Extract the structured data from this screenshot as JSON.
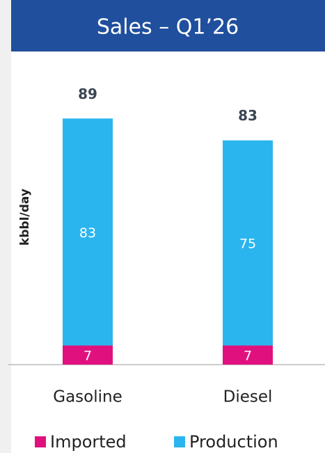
{
  "chart_data": {
    "type": "stacked_bar",
    "title": "Sales – Q1’26",
    "y_label": "kbbl/day",
    "categories": [
      "Gasoline",
      "Diesel"
    ],
    "series": [
      {
        "name": "Imported",
        "color": "#e0117f",
        "values": [
          7,
          7
        ]
      },
      {
        "name": "Production",
        "color": "#2bb5ef",
        "values": [
          83,
          75
        ]
      }
    ],
    "totals": [
      89,
      83
    ],
    "ylim": [
      0,
      100
    ]
  }
}
